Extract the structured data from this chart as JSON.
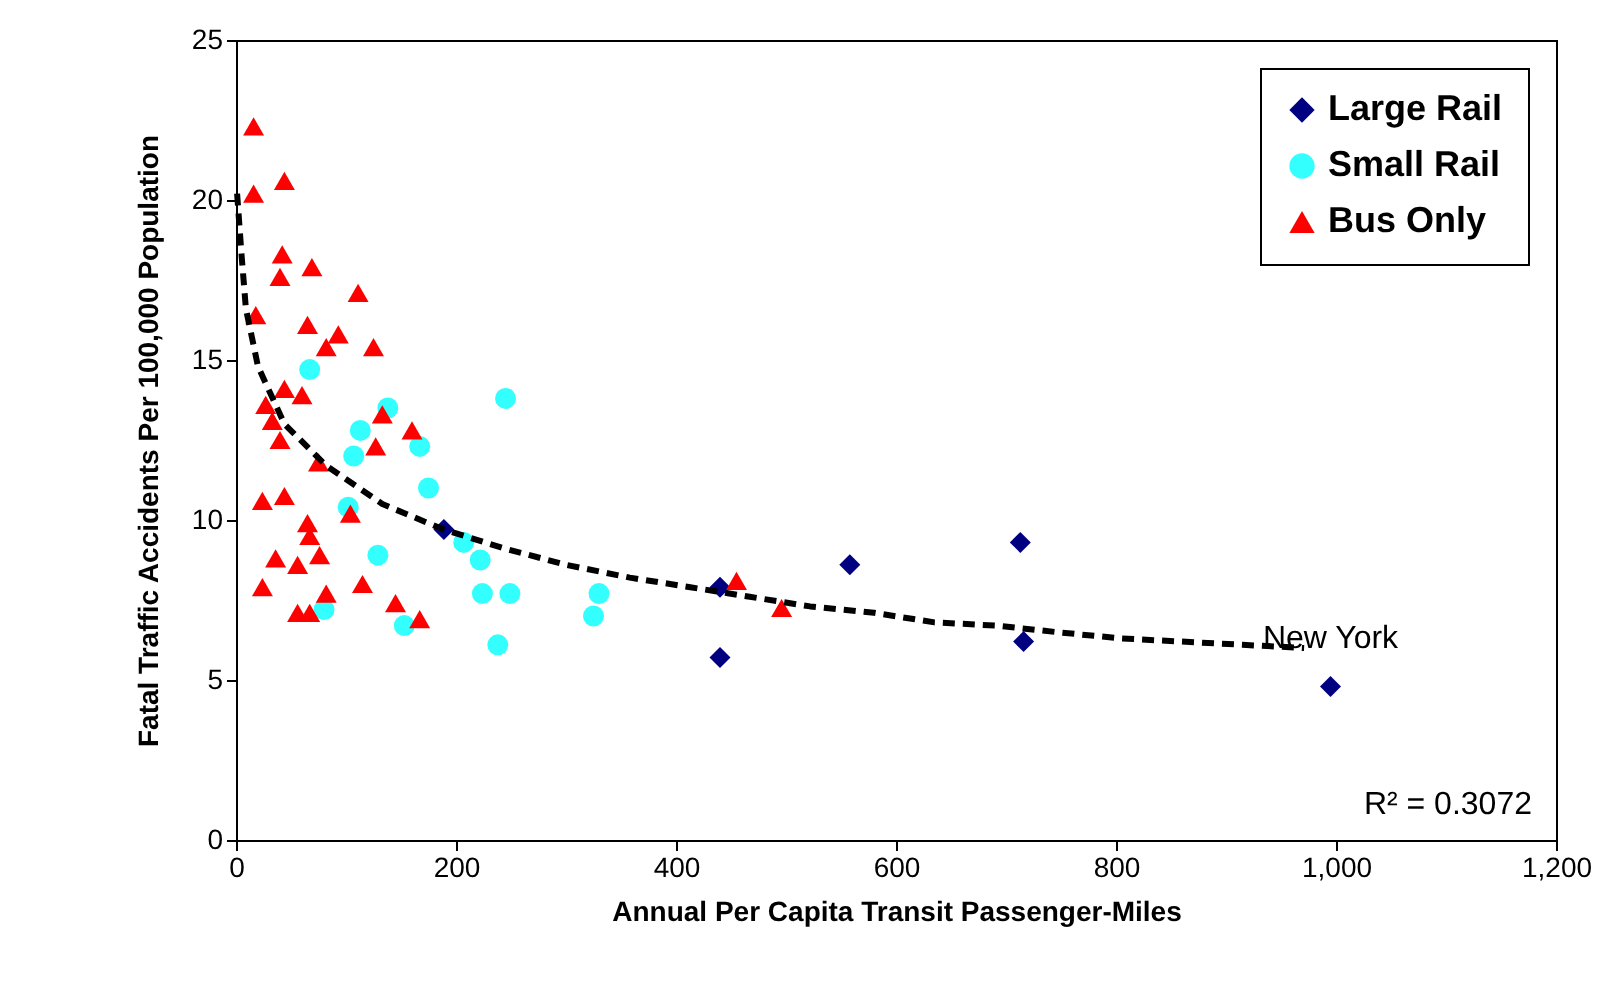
{
  "chart_data": {
    "type": "scatter",
    "xlabel": "Annual Per Capita Transit Passenger-Miles",
    "ylabel": "Fatal Traffic Accidents Per 100,000 Population",
    "xlim": [
      0,
      1200
    ],
    "xticks": [
      0,
      200,
      400,
      600,
      800,
      {
        "value": 1000,
        "label": "1,000"
      },
      {
        "value": 1200,
        "label": "1,200"
      }
    ],
    "ylim": [
      0,
      25
    ],
    "yticks": [
      0,
      5,
      10,
      15,
      20,
      25
    ],
    "grid": false,
    "legend": "top right",
    "series": [
      {
        "name": "Large Rail",
        "color": "#000080",
        "marker": "diamond",
        "x": [
          189,
          440,
          440,
          558,
          713,
          716,
          995
        ],
        "values": [
          9.7,
          7.9,
          5.7,
          8.6,
          9.3,
          6.2,
          4.8
        ]
      },
      {
        "name": "Small Rail",
        "color": "#33ffff",
        "marker": "circle",
        "x": [
          67,
          245,
          138,
          113,
          107,
          167,
          175,
          102,
          129,
          207,
          222,
          224,
          249,
          238,
          153,
          80,
          330,
          325
        ],
        "values": [
          14.7,
          13.8,
          13.5,
          12.8,
          12.0,
          12.3,
          11.0,
          10.4,
          8.9,
          9.3,
          8.75,
          7.7,
          7.7,
          6.1,
          6.7,
          7.2,
          7.7,
          7.0
        ]
      },
      {
        "name": "Bus Only",
        "color": "#ff0000",
        "marker": "triangle",
        "x": [
          16,
          16,
          44,
          42,
          69,
          40,
          111,
          18,
          65,
          93,
          82,
          125,
          44,
          60,
          27,
          33,
          133,
          40,
          160,
          127,
          75,
          44,
          24,
          65,
          104,
          67,
          76,
          36,
          56,
          24,
          82,
          115,
          56,
          67,
          145,
          167,
          455,
          496
        ],
        "values": [
          22.3,
          20.2,
          20.6,
          18.3,
          17.9,
          17.6,
          17.1,
          16.4,
          16.1,
          15.8,
          15.4,
          15.4,
          14.1,
          13.9,
          13.6,
          13.1,
          13.3,
          12.5,
          12.8,
          12.3,
          11.8,
          10.75,
          10.6,
          9.9,
          10.2,
          9.5,
          8.9,
          8.8,
          8.6,
          7.9,
          7.7,
          8.0,
          7.1,
          7.1,
          7.4,
          6.9,
          8.1,
          7.25
        ]
      },
      {
        "type": "line",
        "color": "#000000",
        "marker": "none",
        "line_style": "dashed",
        "x": [
          1,
          5,
          9,
          20,
          44,
          82,
          133,
          189,
          245,
          300,
          358,
          413,
          467,
          522,
          580,
          635,
          691,
          745,
          804,
          860,
          915,
          971
        ],
        "values": [
          20.2,
          18.3,
          16.6,
          14.8,
          13.0,
          11.7,
          10.5,
          9.7,
          9.1,
          8.6,
          8.2,
          7.9,
          7.6,
          7.3,
          7.1,
          6.8,
          6.7,
          6.5,
          6.3,
          6.2,
          6.1,
          6.0
        ]
      }
    ],
    "annotations": [
      {
        "text": "New York",
        "x": 995,
        "y": 4.8
      },
      "R² = 0.3072"
    ]
  }
}
